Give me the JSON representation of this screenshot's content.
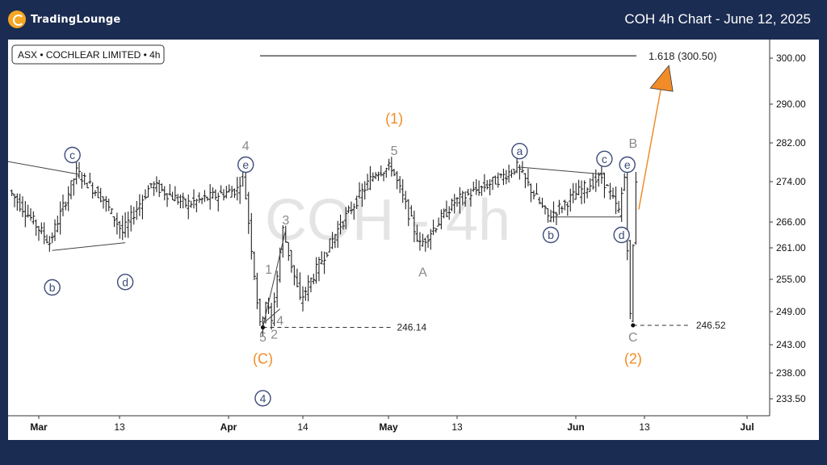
{
  "header": {
    "brand_main": "TradingLounge",
    "title": "COH 4h Chart - June 12, 2025"
  },
  "symbol_label": "ASX • COCHLEAR LIMITED • 4h",
  "watermark": "COH - 4h",
  "colors": {
    "background": "#1b2c52",
    "accent_orange": "#f28c28",
    "wave_gray": "#8a8a8a",
    "wave_navy": "#3d4b7a",
    "bar": "#222222"
  },
  "chart_data": {
    "type": "ohlc",
    "timeframe": "4h",
    "y_ticks": [
      233.5,
      238.0,
      243.0,
      249.0,
      255.0,
      261.0,
      266.0,
      274.0,
      282.0,
      290.0,
      300.0
    ],
    "y_tick_labels": [
      "233.50",
      "238.00",
      "243.00",
      "249.00",
      "255.00",
      "261.00",
      "266.00",
      "274.00",
      "282.00",
      "290.00",
      "300.00"
    ],
    "x_tick_labels": [
      "Mar",
      "13",
      "Apr",
      "14",
      "May",
      "13",
      "Jun",
      "13",
      "Jul"
    ],
    "x_tick_dates": [
      "2025-03-01",
      "2025-03-13",
      "2025-04-01",
      "2025-04-14",
      "2025-05-01",
      "2025-05-13",
      "2025-06-01",
      "2025-06-13",
      "2025-07-01"
    ],
    "price_swings": [
      {
        "date": "2025-02-21",
        "price": 279.0
      },
      {
        "date": "2025-03-03",
        "price": 262.0
      },
      {
        "date": "2025-03-07",
        "price": 276.0
      },
      {
        "date": "2025-03-11",
        "price": 270.5
      },
      {
        "date": "2025-03-14",
        "price": 264.0
      },
      {
        "date": "2025-03-19",
        "price": 273.5
      },
      {
        "date": "2025-03-25",
        "price": 269.5
      },
      {
        "date": "2025-04-03",
        "price": 272.5
      },
      {
        "date": "2025-04-04",
        "price": 276.0
      },
      {
        "date": "2025-04-07",
        "price": 246.2
      },
      {
        "date": "2025-04-08",
        "price": 251.0
      },
      {
        "date": "2025-04-09",
        "price": 247.0
      },
      {
        "date": "2025-04-11",
        "price": 264.5
      },
      {
        "date": "2025-04-14",
        "price": 251.0
      },
      {
        "date": "2025-04-22",
        "price": 265.5
      },
      {
        "date": "2025-04-29",
        "price": 276.0
      },
      {
        "date": "2025-05-02",
        "price": 277.0
      },
      {
        "date": "2025-05-07",
        "price": 261.5
      },
      {
        "date": "2025-05-13",
        "price": 270.0
      },
      {
        "date": "2025-05-20",
        "price": 274.5
      },
      {
        "date": "2025-05-23",
        "price": 277.0
      },
      {
        "date": "2025-05-28",
        "price": 267.0
      },
      {
        "date": "2025-06-02",
        "price": 272.0
      },
      {
        "date": "2025-06-06",
        "price": 275.0
      },
      {
        "date": "2025-06-09",
        "price": 268.0
      },
      {
        "date": "2025-06-10",
        "price": 275.0
      },
      {
        "date": "2025-06-11",
        "price": 248.0
      },
      {
        "date": "2025-06-12",
        "price": 274.5
      }
    ],
    "levels": [
      {
        "label": "246.14",
        "price": 246.14,
        "style": "dashed"
      },
      {
        "label": "246.52",
        "price": 246.52,
        "style": "dashed"
      },
      {
        "label": "1.618 (300.50)",
        "price": 300.5,
        "style": "solid"
      }
    ],
    "wave_labels": [
      {
        "text": "(1)",
        "date": "2025-05-02",
        "price": 287.0,
        "color": "orange"
      },
      {
        "text": "(C)",
        "date": "2025-04-07",
        "price": 240.5,
        "color": "orange"
      },
      {
        "text": "(2)",
        "date": "2025-06-11",
        "price": 240.5,
        "color": "orange"
      },
      {
        "text": "5",
        "date": "2025-05-02",
        "price": 280.5,
        "color": "gray"
      },
      {
        "text": "A",
        "date": "2025-05-07",
        "price": 256.5,
        "color": "gray"
      },
      {
        "text": "B",
        "date": "2025-06-11",
        "price": 282.0,
        "color": "gray"
      },
      {
        "text": "C",
        "date": "2025-06-11",
        "price": 244.5,
        "color": "gray"
      },
      {
        "text": "4",
        "date": "2025-04-04",
        "price": 281.5,
        "color": "gray"
      },
      {
        "text": "5",
        "date": "2025-04-07",
        "price": 244.5,
        "color": "gray"
      },
      {
        "text": "1",
        "date": "2025-04-08",
        "price": 257.0,
        "color": "gray"
      },
      {
        "text": "2",
        "date": "2025-04-09",
        "price": 245.0,
        "color": "gray"
      },
      {
        "text": "3",
        "date": "2025-04-11",
        "price": 266.5,
        "color": "gray"
      },
      {
        "text": "4",
        "date": "2025-04-10",
        "price": 247.5,
        "color": "gray"
      },
      {
        "text": "c",
        "date": "2025-03-06",
        "price": 279.5,
        "color": "navy",
        "circled": true
      },
      {
        "text": "b",
        "date": "2025-03-03",
        "price": 253.5,
        "color": "navy",
        "circled": true
      },
      {
        "text": "d",
        "date": "2025-03-14",
        "price": 254.5,
        "color": "navy",
        "circled": true
      },
      {
        "text": "e",
        "date": "2025-04-04",
        "price": 277.5,
        "color": "navy",
        "circled": true
      },
      {
        "text": "4",
        "date": "2025-04-07",
        "price": 233.6,
        "color": "navy",
        "circled": true
      },
      {
        "text": "a",
        "date": "2025-05-23",
        "price": 280.3,
        "color": "navy",
        "circled": true
      },
      {
        "text": "b",
        "date": "2025-05-28",
        "price": 263.5,
        "color": "navy",
        "circled": true
      },
      {
        "text": "c",
        "date": "2025-06-06",
        "price": 278.7,
        "color": "navy",
        "circled": true
      },
      {
        "text": "d",
        "date": "2025-06-09",
        "price": 263.5,
        "color": "navy",
        "circled": true
      },
      {
        "text": "e",
        "date": "2025-06-10",
        "price": 277.5,
        "color": "navy",
        "circled": true
      }
    ],
    "arrow": {
      "from_date": "2025-06-12",
      "from_price": 268.5,
      "to_date": "2025-06-16",
      "to_price": 300.5,
      "color": "orange"
    }
  }
}
